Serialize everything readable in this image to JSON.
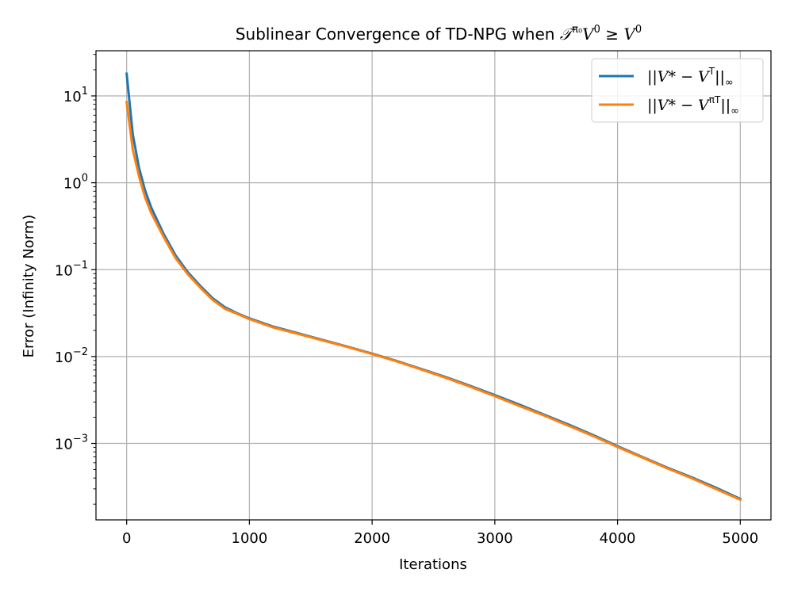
{
  "chart_data": {
    "type": "line",
    "title": {
      "prefix": "Sublinear Convergence of TD-NPG when ",
      "operator": "𝒯",
      "operator_sup": "π₀",
      "v1": "V",
      "v1_sup": "0",
      "relation": " ≥ ",
      "v2": "V",
      "v2_sup": "0"
    },
    "xlabel": "Iterations",
    "ylabel": "Error (Infinity Norm)",
    "xlim": [
      -250,
      5250
    ],
    "ylim_log10": [
      -3.88,
      1.52
    ],
    "yscale": "log",
    "grid": true,
    "legend_position": "upper right",
    "x_ticks": [
      0,
      1000,
      2000,
      3000,
      4000,
      5000
    ],
    "x_tick_labels": [
      "0",
      "1000",
      "2000",
      "3000",
      "4000",
      "5000"
    ],
    "y_ticks_exp": [
      1,
      0,
      -1,
      -2,
      -3
    ],
    "y_tick_labels": [
      {
        "base": "10",
        "exp": "1"
      },
      {
        "base": "10",
        "exp": "0"
      },
      {
        "base": "10",
        "exp": "−1"
      },
      {
        "base": "10",
        "exp": "−2"
      },
      {
        "base": "10",
        "exp": "−3"
      }
    ],
    "series": [
      {
        "name": "||V* − V^T||∞",
        "legend": {
          "pre": "||V* − V",
          "sup": "T",
          "post": "||",
          "sub": "∞"
        },
        "color": "#1f77b4",
        "x": [
          0,
          50,
          100,
          150,
          200,
          300,
          400,
          500,
          600,
          700,
          800,
          900,
          1000,
          1200,
          1400,
          1600,
          1800,
          2000,
          2200,
          2400,
          2600,
          2800,
          3000,
          3200,
          3400,
          3600,
          3800,
          4000,
          4200,
          4400,
          4600,
          4800,
          5000
        ],
        "values": [
          18.0,
          3.6,
          1.5,
          0.82,
          0.52,
          0.26,
          0.145,
          0.093,
          0.065,
          0.047,
          0.037,
          0.0315,
          0.0275,
          0.022,
          0.0185,
          0.0155,
          0.013,
          0.0108,
          0.0089,
          0.0072,
          0.0058,
          0.0046,
          0.0036,
          0.0028,
          0.00215,
          0.00165,
          0.00125,
          0.00093,
          0.0007,
          0.00053,
          0.00041,
          0.00031,
          0.00023
        ]
      },
      {
        "name": "||V* − V^{π_T}||∞",
        "legend": {
          "pre": "||V* − V",
          "sup": "πT",
          "post": "||",
          "sub": "∞"
        },
        "color": "#ff7f0e",
        "x": [
          0,
          50,
          100,
          150,
          200,
          300,
          400,
          500,
          600,
          700,
          800,
          900,
          1000,
          1200,
          1400,
          1600,
          1800,
          2000,
          2200,
          2400,
          2600,
          2800,
          3000,
          3200,
          3400,
          3600,
          3800,
          4000,
          4200,
          4400,
          4600,
          4800,
          5000
        ],
        "values": [
          8.5,
          2.4,
          1.2,
          0.68,
          0.45,
          0.24,
          0.135,
          0.088,
          0.062,
          0.045,
          0.0355,
          0.031,
          0.027,
          0.0215,
          0.0182,
          0.0153,
          0.0129,
          0.0107,
          0.0088,
          0.0071,
          0.0057,
          0.0045,
          0.0035,
          0.0027,
          0.0021,
          0.0016,
          0.00122,
          0.00091,
          0.00069,
          0.00052,
          0.0004,
          0.0003,
          0.000225
        ]
      }
    ]
  }
}
